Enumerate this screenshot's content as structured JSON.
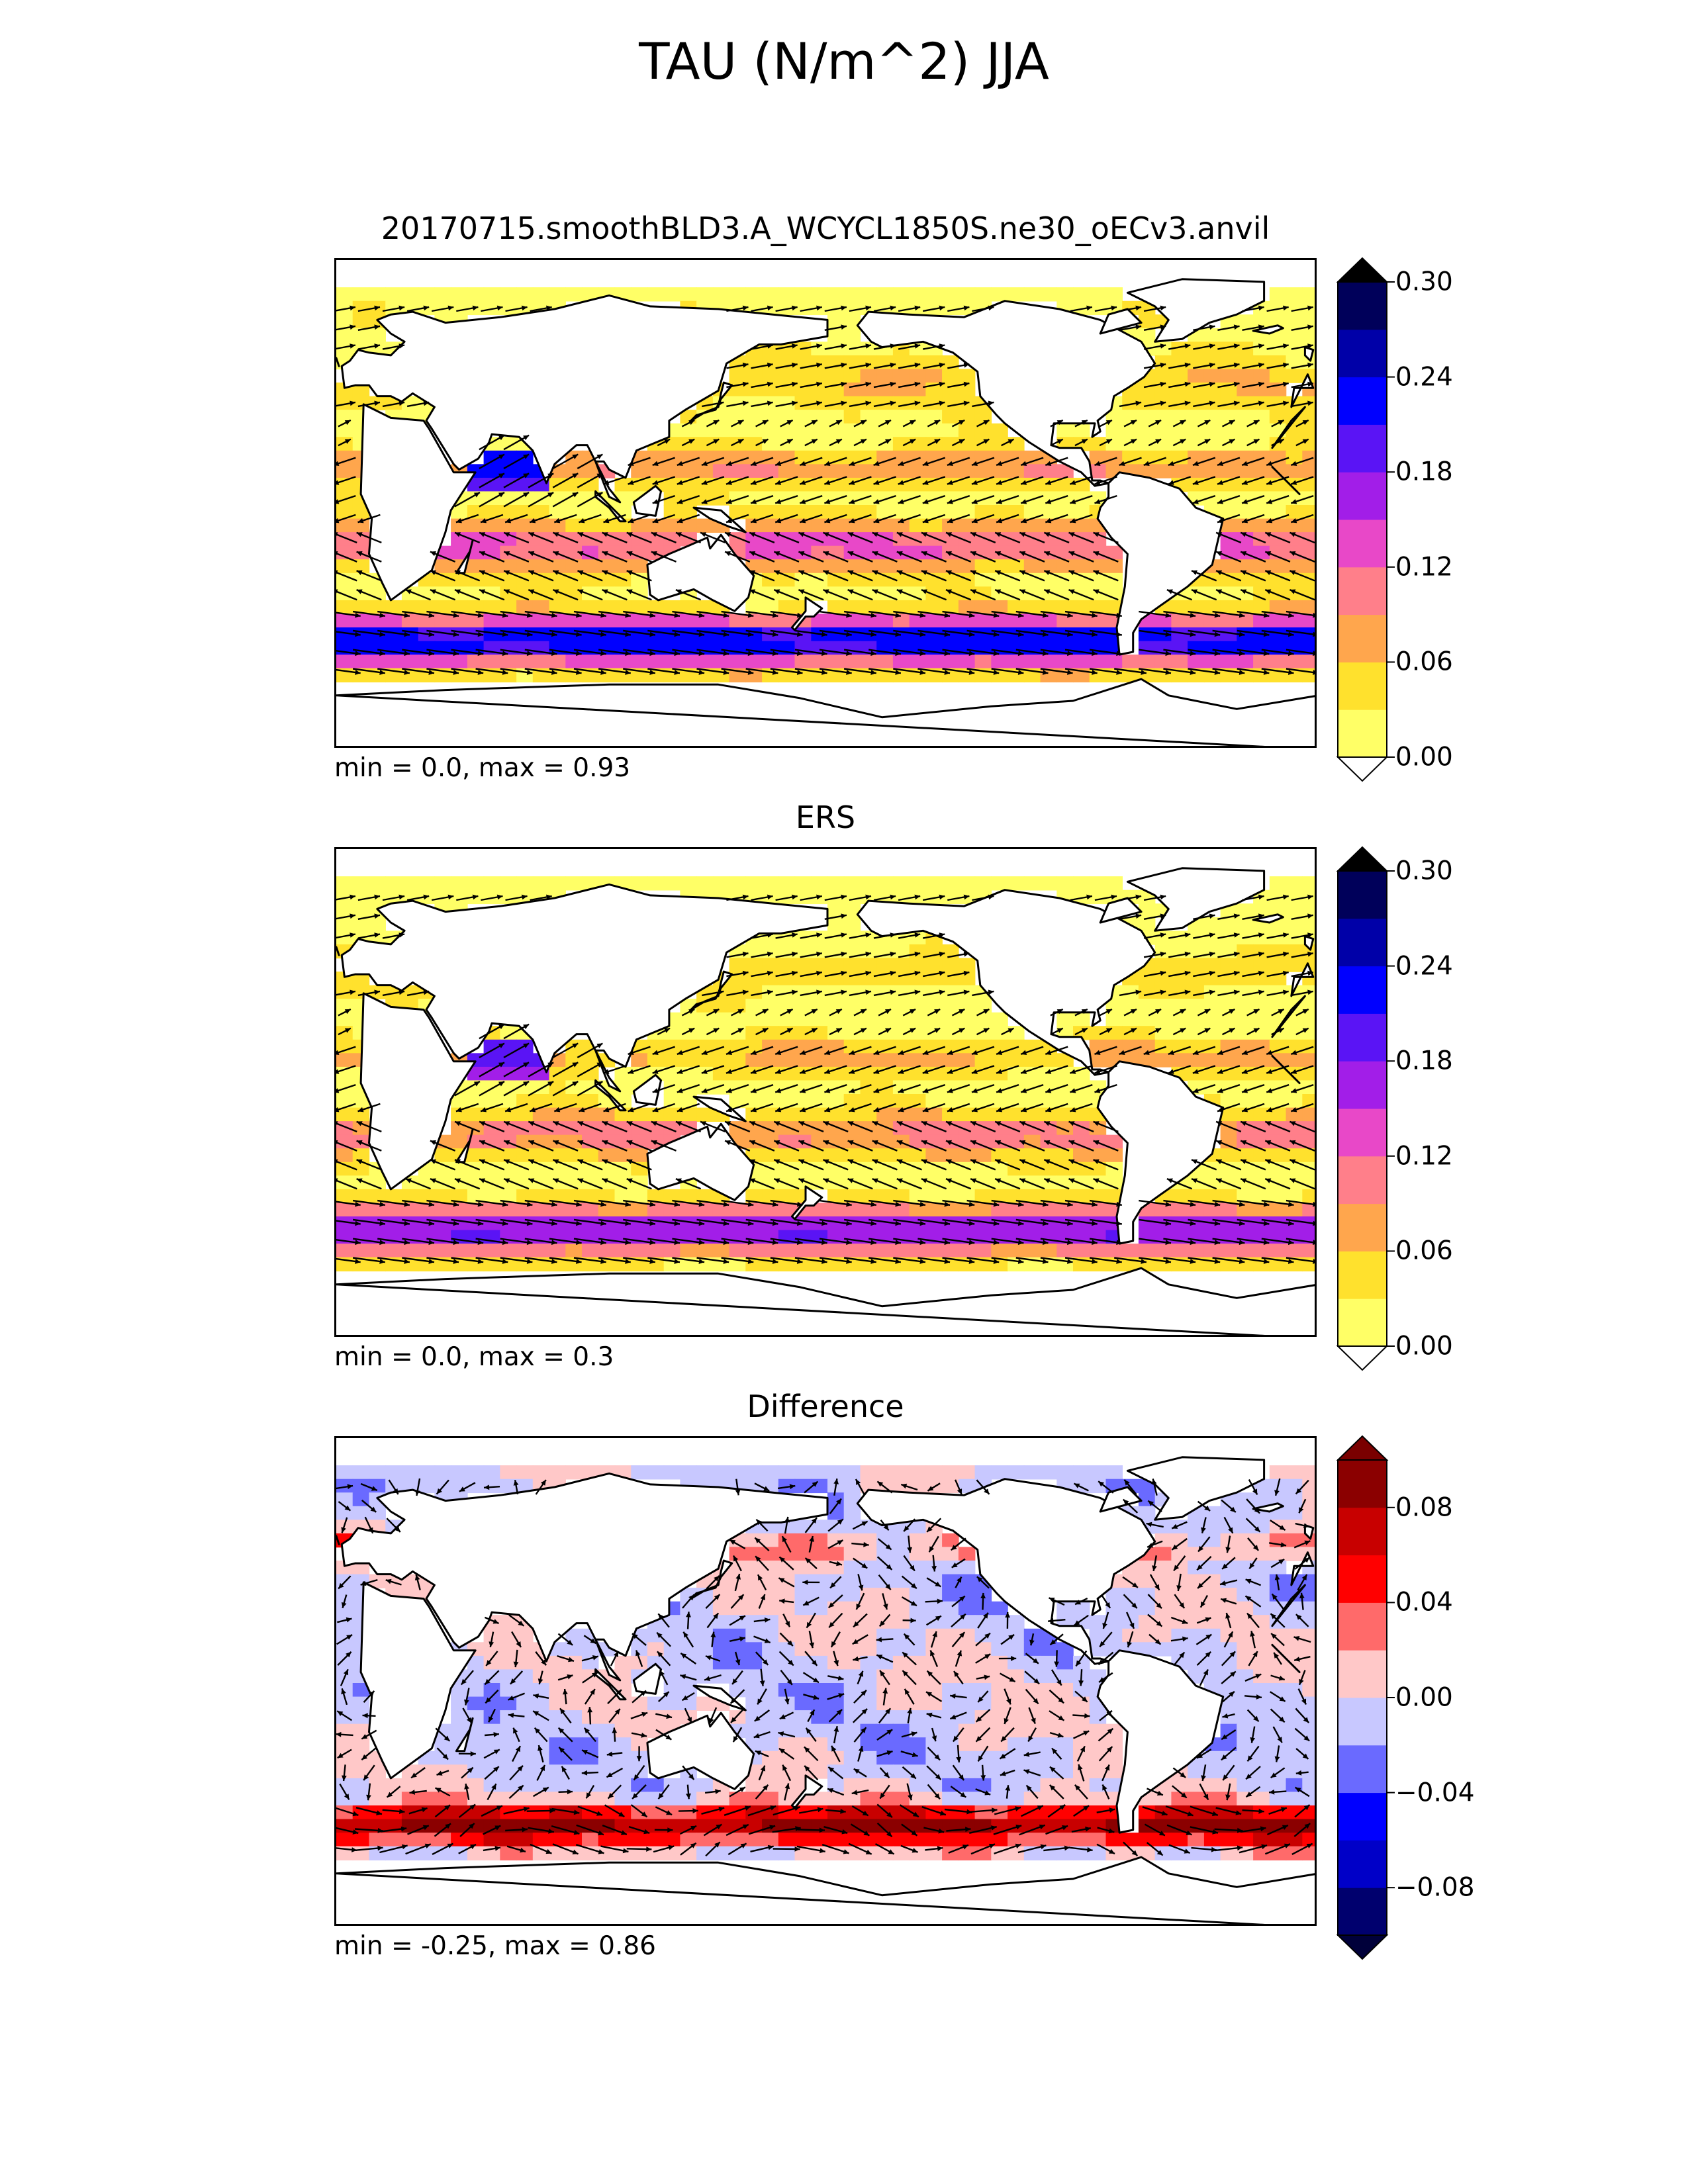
{
  "figure": {
    "title": "TAU (N/m^2) JJA"
  },
  "colors": {
    "sequential": [
      "#ffff66",
      "#ffe12d",
      "#ffa64d",
      "#ff7f8a",
      "#e848c8",
      "#a21ee8",
      "#5a14f5",
      "#0000ff",
      "#0000a8",
      "#00005a",
      "#000030"
    ],
    "sequential_under": "#ffffff",
    "sequential_over": "#000000",
    "diverging": [
      "#00006e",
      "#0000c8",
      "#0000ff",
      "#6a6aff",
      "#c8c8ff",
      "#ffc8c8",
      "#ff6a6a",
      "#ff0000",
      "#c80000",
      "#8b0000"
    ],
    "diverging_under": "#00003a",
    "diverging_over": "#7a0000",
    "land": "#ffffff",
    "coast": "#000000",
    "vector": "#000000"
  },
  "chart_data": [
    {
      "type": "heatmap",
      "title": "20170715.smoothBLD3.A_WCYCL1850S.ne30_oECv3.anvil",
      "stats": "min = 0.0, max = 0.93",
      "colorbar": {
        "ticks": [
          "0.00",
          "0.06",
          "0.12",
          "0.18",
          "0.24",
          "0.30"
        ],
        "min": 0.0,
        "max": 0.3,
        "extend": "both"
      }
    },
    {
      "type": "heatmap",
      "title": "ERS",
      "stats": "min = 0.0, max = 0.3",
      "colorbar": {
        "ticks": [
          "0.00",
          "0.06",
          "0.12",
          "0.18",
          "0.24",
          "0.30"
        ],
        "min": 0.0,
        "max": 0.3,
        "extend": "both"
      }
    },
    {
      "type": "heatmap",
      "title": "Difference",
      "stats": "min = -0.25, max = 0.86",
      "colorbar": {
        "ticks": [
          "0.08",
          "0.04",
          "0.00",
          "−0.04",
          "−0.08"
        ],
        "tick_values": [
          0.08,
          0.04,
          0.0,
          -0.04,
          -0.08
        ],
        "min": -0.1,
        "max": 0.1,
        "extend": "both"
      }
    }
  ]
}
